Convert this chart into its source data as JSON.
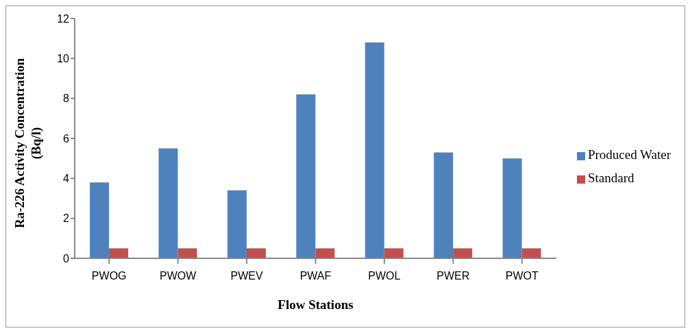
{
  "chart_data": {
    "type": "bar",
    "xlabel": "Flow Stations",
    "ylabel": "Ra-226 Activity Concentration (Bq/l)",
    "categories": [
      "PWOG",
      "PWOW",
      "PWEV",
      "PWAF",
      "PWOL",
      "PWER",
      "PWOT"
    ],
    "series": [
      {
        "name": "Produced Water",
        "color": "#4f81bd",
        "values": [
          3.8,
          5.5,
          3.4,
          8.2,
          10.8,
          5.3,
          5.0
        ]
      },
      {
        "name": "Standard",
        "color": "#c0504d",
        "values": [
          0.5,
          0.5,
          0.5,
          0.5,
          0.5,
          0.5,
          0.5
        ]
      }
    ],
    "ylim": [
      0,
      12
    ],
    "yticks": [
      0,
      2,
      4,
      6,
      8,
      10,
      12
    ],
    "grid": false,
    "legend": "right"
  }
}
